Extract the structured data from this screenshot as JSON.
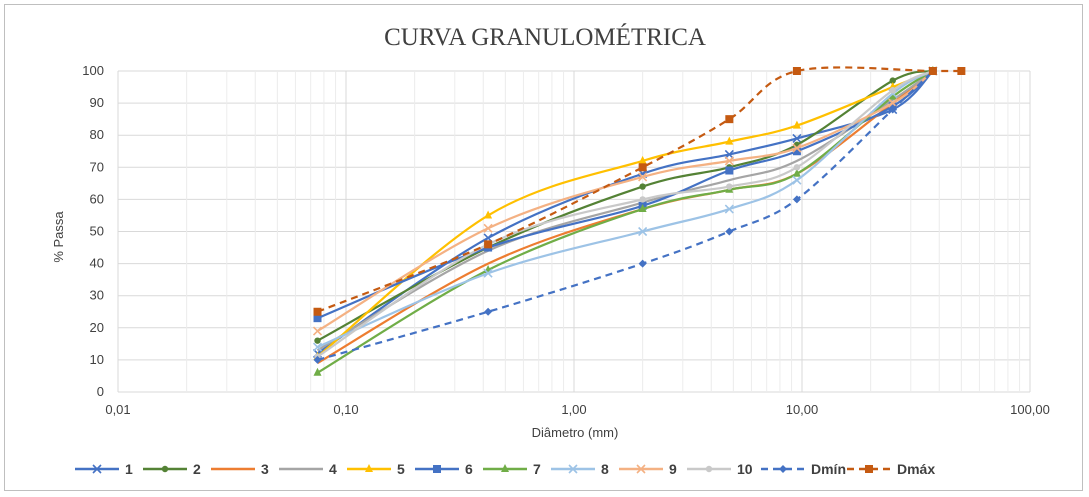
{
  "chart_data": {
    "type": "line",
    "title": "CURVA GRANULOMÉTRICA",
    "xlabel": "Diâmetro (mm)",
    "ylabel": "% Passa",
    "xscale": "log",
    "xlim": [
      0.01,
      100
    ],
    "ylim": [
      0,
      100
    ],
    "x_ticks": [
      0.01,
      0.1,
      1,
      10,
      100
    ],
    "x_tick_labels": [
      "0,01",
      "0,10",
      "1,00",
      "10,00",
      "100,00"
    ],
    "y_ticks": [
      0,
      10,
      20,
      30,
      40,
      50,
      60,
      70,
      80,
      90,
      100
    ],
    "y_tick_labels": [
      "0",
      "10",
      "20",
      "30",
      "40",
      "50",
      "60",
      "70",
      "80",
      "90",
      "100"
    ],
    "grid": true,
    "legend_position": "bottom",
    "x": [
      0.075,
      0.42,
      2.0,
      4.8,
      9.5,
      25.0,
      37.5
    ],
    "series": [
      {
        "name": "1",
        "color": "#4472c4",
        "marker": "x",
        "dash": false,
        "values": [
          12,
          48,
          68,
          74,
          79,
          88,
          100
        ]
      },
      {
        "name": "2",
        "color": "#548235",
        "marker": "circle",
        "dash": false,
        "values": [
          16,
          45,
          64,
          70,
          77,
          97,
          100
        ]
      },
      {
        "name": "3",
        "color": "#ed7d31",
        "marker": "none",
        "dash": false,
        "values": [
          9,
          40,
          57,
          63,
          68,
          90,
          100
        ]
      },
      {
        "name": "4",
        "color": "#a5a5a5",
        "marker": "none",
        "dash": false,
        "values": [
          13,
          44,
          59,
          66,
          72,
          91,
          100
        ]
      },
      {
        "name": "5",
        "color": "#ffc000",
        "marker": "triangle",
        "dash": false,
        "values": [
          11,
          55,
          72,
          78,
          83,
          95,
          100
        ]
      },
      {
        "name": "6",
        "color": "#4472c4",
        "marker": "square",
        "dash": false,
        "values": [
          23,
          45,
          58,
          69,
          75,
          89,
          100
        ]
      },
      {
        "name": "7",
        "color": "#70ad47",
        "marker": "triangle",
        "dash": false,
        "values": [
          6,
          38,
          57,
          63,
          68,
          92,
          100
        ]
      },
      {
        "name": "8",
        "color": "#9dc3e6",
        "marker": "x",
        "dash": false,
        "values": [
          14,
          37,
          50,
          57,
          66,
          93,
          100
        ]
      },
      {
        "name": "9",
        "color": "#f4b183",
        "marker": "x",
        "dash": false,
        "values": [
          19,
          51,
          67,
          72,
          76,
          90,
          100
        ]
      },
      {
        "name": "10",
        "color": "#c9c9c9",
        "marker": "circle",
        "dash": false,
        "values": [
          11,
          46,
          60,
          64,
          70,
          94,
          100
        ]
      },
      {
        "name": "Dmín",
        "color": "#4472c4",
        "marker": "diamond",
        "dash": true,
        "x": [
          0.075,
          0.42,
          2.0,
          4.8,
          9.5,
          25.0,
          37.5
        ],
        "values": [
          10,
          25,
          40,
          50,
          60,
          88,
          100
        ]
      },
      {
        "name": "Dmáx",
        "color": "#c55a11",
        "marker": "square",
        "dash": true,
        "x": [
          0.075,
          0.42,
          2.0,
          4.8,
          9.5,
          37.5,
          50.0
        ],
        "values": [
          25,
          46,
          70,
          85,
          100,
          100,
          100
        ]
      }
    ]
  }
}
